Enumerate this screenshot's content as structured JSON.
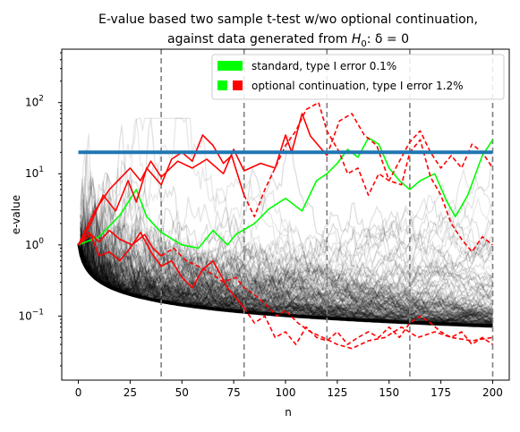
{
  "chart_data": {
    "type": "line",
    "title_line1": "E-value based two sample t-test w/wo optional continuation,",
    "title_line2_prefix": "against data generated from ",
    "title_line2_math": "H",
    "title_line2_sub": "0",
    "title_line2_suffix": ":  δ = 0",
    "xlabel": "n",
    "ylabel": "e-value",
    "xlim": [
      -8,
      208
    ],
    "ylim_log10": [
      -1.9,
      2.75
    ],
    "y_scale": "log",
    "x_ticks": [
      0,
      25,
      50,
      75,
      100,
      125,
      150,
      175,
      200
    ],
    "y_ticks": [
      {
        "value": 0.1,
        "base": "10",
        "exp": "−1"
      },
      {
        "value": 1,
        "base": "10",
        "exp": "0"
      },
      {
        "value": 10,
        "base": "10",
        "exp": "1"
      },
      {
        "value": 100,
        "base": "10",
        "exp": "2"
      }
    ],
    "threshold": {
      "value": 20,
      "color": "#1f77b4"
    },
    "vertical_lines": [
      40,
      80,
      120,
      160,
      200
    ],
    "vline_color": "#7f7f7f",
    "legend": {
      "placement": "top-right",
      "entries": [
        {
          "label": "standard, type I error 0.1%",
          "colors": [
            "#00ff00"
          ]
        },
        {
          "label": "optional continuation, type I error 1.2%",
          "colors": [
            "#00ff00",
            "#ff0000"
          ]
        }
      ]
    },
    "series": [
      {
        "style": "green",
        "color": "#00ff00",
        "dash": false,
        "points": [
          [
            0,
            1.0
          ],
          [
            10,
            1.3
          ],
          [
            20,
            2.6
          ],
          [
            28,
            6
          ],
          [
            33,
            2.5
          ],
          [
            40,
            1.5
          ],
          [
            50,
            1.0
          ],
          [
            58,
            0.9
          ],
          [
            65,
            1.6
          ],
          [
            72,
            1.0
          ],
          [
            76,
            1.4
          ],
          [
            85,
            2.0
          ],
          [
            92,
            3.2
          ],
          [
            100,
            4.5
          ],
          [
            108,
            3.0
          ],
          [
            115,
            8
          ],
          [
            120,
            10
          ],
          [
            125,
            14
          ],
          [
            130,
            22
          ],
          [
            135,
            17
          ],
          [
            140,
            32
          ],
          [
            145,
            26
          ],
          [
            150,
            12
          ],
          [
            155,
            8
          ],
          [
            160,
            6
          ],
          [
            165,
            8
          ],
          [
            172,
            10
          ],
          [
            178,
            4
          ],
          [
            182,
            2.5
          ],
          [
            188,
            5
          ],
          [
            195,
            18
          ],
          [
            200,
            30
          ]
        ]
      },
      {
        "style": "red",
        "color": "#ff0000",
        "dash": false,
        "points": [
          [
            0,
            1.0
          ],
          [
            8,
            3.0
          ],
          [
            15,
            6
          ],
          [
            25,
            12
          ],
          [
            30,
            8
          ],
          [
            35,
            15
          ],
          [
            40,
            9
          ],
          [
            48,
            15
          ],
          [
            55,
            12
          ],
          [
            62,
            16
          ],
          [
            70,
            10
          ],
          [
            75,
            22
          ],
          [
            80,
            11
          ],
          [
            88,
            14
          ],
          [
            95,
            12
          ],
          [
            100,
            35
          ],
          [
            103,
            20
          ],
          [
            108,
            70
          ],
          [
            112,
            34
          ],
          [
            120,
            18
          ]
        ]
      },
      {
        "style": "red",
        "color": "#ff0000",
        "dash": true,
        "points": [
          [
            120,
            18
          ],
          [
            126,
            55
          ],
          [
            132,
            70
          ],
          [
            138,
            35
          ],
          [
            144,
            25
          ],
          [
            150,
            8
          ],
          [
            155,
            15
          ],
          [
            160,
            28
          ],
          [
            165,
            40
          ],
          [
            170,
            20
          ],
          [
            175,
            12
          ],
          [
            180,
            18
          ],
          [
            185,
            12
          ],
          [
            190,
            26
          ],
          [
            195,
            20
          ],
          [
            200,
            12
          ]
        ]
      },
      {
        "style": "red",
        "color": "#ff0000",
        "dash": false,
        "points": [
          [
            0,
            1.0
          ],
          [
            6,
            2.0
          ],
          [
            12,
            5
          ],
          [
            18,
            3.0
          ],
          [
            24,
            8
          ],
          [
            28,
            4
          ],
          [
            33,
            12
          ],
          [
            40,
            7
          ],
          [
            45,
            16
          ],
          [
            50,
            20
          ],
          [
            55,
            15
          ],
          [
            60,
            35
          ],
          [
            65,
            25
          ],
          [
            70,
            14
          ],
          [
            74,
            18
          ],
          [
            80,
            5
          ]
        ]
      },
      {
        "style": "red",
        "color": "#ff0000",
        "dash": true,
        "points": [
          [
            80,
            5
          ],
          [
            85,
            2.5
          ],
          [
            90,
            6
          ],
          [
            95,
            12
          ],
          [
            100,
            25
          ],
          [
            105,
            40
          ],
          [
            110,
            80
          ],
          [
            116,
            100
          ],
          [
            120,
            40
          ],
          [
            126,
            20
          ],
          [
            130,
            10
          ],
          [
            135,
            12
          ],
          [
            140,
            5
          ],
          [
            145,
            10
          ],
          [
            150,
            8
          ],
          [
            156,
            7
          ],
          [
            160,
            20
          ],
          [
            165,
            30
          ],
          [
            170,
            9
          ],
          [
            175,
            5
          ],
          [
            180,
            2.0
          ],
          [
            185,
            1.2
          ],
          [
            190,
            0.8
          ],
          [
            195,
            1.3
          ],
          [
            200,
            1.0
          ]
        ]
      },
      {
        "style": "red",
        "color": "#ff0000",
        "dash": false,
        "points": [
          [
            0,
            1.0
          ],
          [
            6,
            1.4
          ],
          [
            10,
            0.7
          ],
          [
            15,
            0.8
          ],
          [
            20,
            0.6
          ],
          [
            25,
            0.9
          ],
          [
            30,
            1.5
          ],
          [
            35,
            0.8
          ],
          [
            40,
            0.5
          ],
          [
            45,
            0.6
          ],
          [
            50,
            0.35
          ],
          [
            55,
            0.25
          ],
          [
            60,
            0.45
          ],
          [
            65,
            0.6
          ],
          [
            72,
            0.25
          ],
          [
            80,
            0.13
          ]
        ]
      },
      {
        "style": "red",
        "color": "#ff0000",
        "dash": true,
        "points": [
          [
            80,
            0.13
          ],
          [
            85,
            0.08
          ],
          [
            90,
            0.1
          ],
          [
            95,
            0.05
          ],
          [
            100,
            0.06
          ],
          [
            105,
            0.04
          ],
          [
            110,
            0.07
          ],
          [
            115,
            0.05
          ],
          [
            120,
            0.045
          ],
          [
            125,
            0.06
          ],
          [
            130,
            0.04
          ],
          [
            135,
            0.05
          ],
          [
            140,
            0.06
          ],
          [
            145,
            0.05
          ],
          [
            150,
            0.07
          ],
          [
            155,
            0.05
          ],
          [
            160,
            0.08
          ],
          [
            165,
            0.1
          ],
          [
            170,
            0.08
          ],
          [
            175,
            0.06
          ],
          [
            180,
            0.05
          ],
          [
            185,
            0.06
          ],
          [
            190,
            0.04
          ],
          [
            195,
            0.05
          ],
          [
            200,
            0.04
          ]
        ]
      },
      {
        "style": "red",
        "color": "#ff0000",
        "dash": false,
        "points": [
          [
            0,
            1.0
          ],
          [
            5,
            1.5
          ],
          [
            10,
            1.1
          ],
          [
            15,
            1.6
          ],
          [
            20,
            1.2
          ],
          [
            26,
            1.0
          ],
          [
            32,
            1.4
          ],
          [
            36,
            0.9
          ],
          [
            40,
            0.7
          ]
        ]
      },
      {
        "style": "red",
        "color": "#ff0000",
        "dash": true,
        "points": [
          [
            40,
            0.7
          ],
          [
            46,
            0.9
          ],
          [
            52,
            0.6
          ],
          [
            58,
            0.5
          ],
          [
            64,
            0.4
          ],
          [
            70,
            0.3
          ],
          [
            76,
            0.35
          ],
          [
            80,
            0.25
          ],
          [
            85,
            0.2
          ],
          [
            90,
            0.15
          ],
          [
            96,
            0.1
          ],
          [
            100,
            0.12
          ],
          [
            106,
            0.08
          ],
          [
            112,
            0.06
          ],
          [
            118,
            0.05
          ],
          [
            125,
            0.04
          ],
          [
            132,
            0.035
          ],
          [
            140,
            0.045
          ],
          [
            148,
            0.05
          ],
          [
            156,
            0.07
          ],
          [
            164,
            0.05
          ],
          [
            172,
            0.06
          ],
          [
            180,
            0.05
          ],
          [
            190,
            0.045
          ],
          [
            200,
            0.05
          ]
        ]
      }
    ]
  }
}
